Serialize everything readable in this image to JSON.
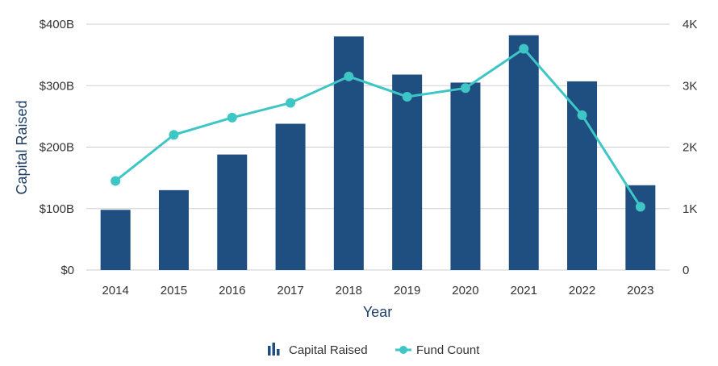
{
  "chart_data": {
    "type": "bar",
    "categories": [
      "2014",
      "2015",
      "2016",
      "2017",
      "2018",
      "2019",
      "2020",
      "2021",
      "2022",
      "2023"
    ],
    "series": [
      {
        "name": "Capital Raised",
        "type": "bar",
        "axis": "left",
        "color": "#1f4e80",
        "values": [
          98,
          130,
          188,
          238,
          380,
          318,
          305,
          382,
          307,
          138
        ]
      },
      {
        "name": "Fund Count",
        "type": "line",
        "axis": "right",
        "color": "#3ec6c6",
        "values": [
          1450,
          2200,
          2480,
          2720,
          3150,
          2820,
          2960,
          3600,
          2520,
          1030
        ]
      }
    ],
    "xlabel": "Year",
    "ylabel": "Capital Raised",
    "ylim": [
      0,
      400
    ],
    "y2lim": [
      0,
      4000
    ],
    "y_ticks": [
      "$0",
      "$100B",
      "$200B",
      "$300B",
      "$400B"
    ],
    "y2_ticks": [
      "0",
      "1K",
      "2K",
      "3K",
      "4K"
    ],
    "grid": true,
    "legend": "bottom-center"
  }
}
